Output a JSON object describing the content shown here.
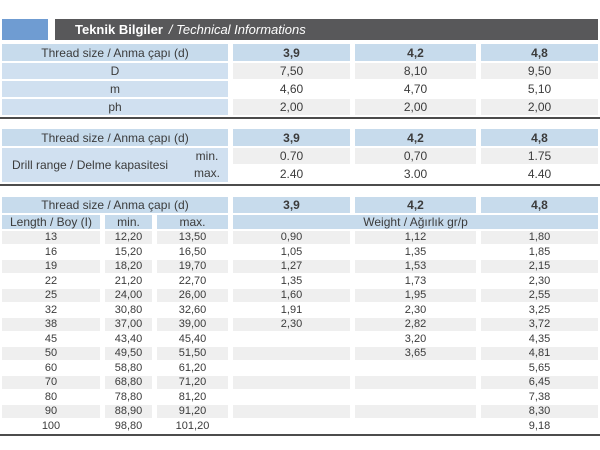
{
  "header": {
    "title_tr": "Teknik Bilgiler",
    "title_en": "/ Technical Informations"
  },
  "colors": {
    "accent_blue": "#6f9cd2",
    "titlebar_gray": "#58585a",
    "header_blue": "#c7dbec",
    "label_blue": "#d0e0f0",
    "stripe_gray": "#efefef"
  },
  "thread_header": {
    "label": "Thread size / Anma çapı (d)",
    "sizes": [
      "3,9",
      "4,2",
      "4,8"
    ]
  },
  "dimensions_table": {
    "rows": [
      {
        "label": "D",
        "values": [
          "7,50",
          "8,10",
          "9,50"
        ]
      },
      {
        "label": "m",
        "values": [
          "4,60",
          "4,70",
          "5,10"
        ]
      },
      {
        "label": "ph",
        "values": [
          "2,00",
          "2,00",
          "2,00"
        ]
      }
    ]
  },
  "drill_table": {
    "label": "Drill range / Delme kapasitesi",
    "min_label": "min.",
    "max_label": "max.",
    "min_values": [
      "0.70",
      "0,70",
      "1.75"
    ],
    "max_values": [
      "2.40",
      "3.00",
      "4.40"
    ]
  },
  "length_table": {
    "length_label": "Length / Boy (I)",
    "min_label": "min.",
    "max_label": "max.",
    "weight_label": "Weight / Ağırlık gr/p",
    "rows": [
      {
        "length": "13",
        "min": "12,20",
        "max": "13,50",
        "weights": [
          "0,90",
          "1,12",
          "1,80"
        ]
      },
      {
        "length": "16",
        "min": "15,20",
        "max": "16,50",
        "weights": [
          "1,05",
          "1,35",
          "1,85"
        ]
      },
      {
        "length": "19",
        "min": "18,20",
        "max": "19,70",
        "weights": [
          "1,27",
          "1,53",
          "2,15"
        ]
      },
      {
        "length": "22",
        "min": "21,20",
        "max": "22,70",
        "weights": [
          "1,35",
          "1,73",
          "2,30"
        ]
      },
      {
        "length": "25",
        "min": "24,00",
        "max": "26,00",
        "weights": [
          "1,60",
          "1,95",
          "2,55"
        ]
      },
      {
        "length": "32",
        "min": "30,80",
        "max": "32,60",
        "weights": [
          "1,91",
          "2,30",
          "3,25"
        ]
      },
      {
        "length": "38",
        "min": "37,00",
        "max": "39,00",
        "weights": [
          "2,30",
          "2,82",
          "3,72"
        ]
      },
      {
        "length": "45",
        "min": "43,40",
        "max": "45,40",
        "weights": [
          "",
          "3,20",
          "4,35"
        ]
      },
      {
        "length": "50",
        "min": "49,50",
        "max": "51,50",
        "weights": [
          "",
          "3,65",
          "4,81"
        ]
      },
      {
        "length": "60",
        "min": "58,80",
        "max": "61,20",
        "weights": [
          "",
          "",
          "5,65"
        ]
      },
      {
        "length": "70",
        "min": "68,80",
        "max": "71,20",
        "weights": [
          "",
          "",
          "6,45"
        ]
      },
      {
        "length": "80",
        "min": "78,80",
        "max": "81,20",
        "weights": [
          "",
          "",
          "7,38"
        ]
      },
      {
        "length": "90",
        "min": "88,90",
        "max": "91,20",
        "weights": [
          "",
          "",
          "8,30"
        ]
      },
      {
        "length": "100",
        "min": "98,80",
        "max": "101,20",
        "weights": [
          "",
          "",
          "9,18"
        ]
      }
    ]
  }
}
